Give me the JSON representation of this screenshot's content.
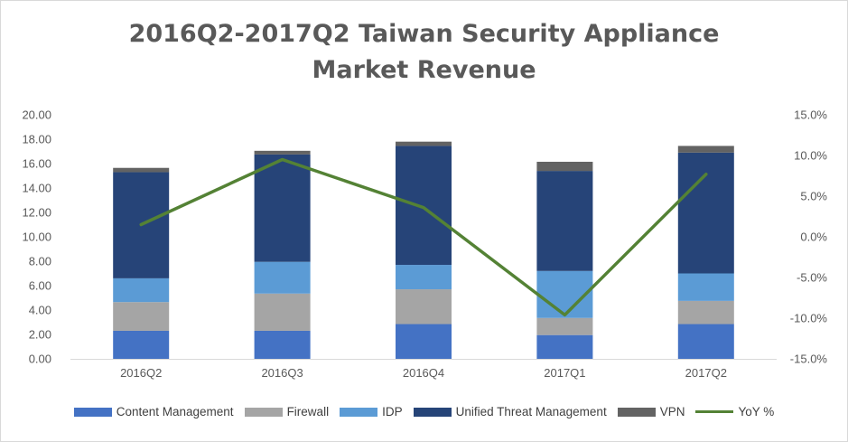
{
  "chart_data": {
    "type": "bar",
    "stacked": true,
    "title_line1": "2016Q2-2017Q2  Taiwan Security Appliance",
    "title_line2": "Market Revenue",
    "categories": [
      "2016Q2",
      "2016Q3",
      "2016Q4",
      "2017Q1",
      "2017Q2"
    ],
    "series": [
      {
        "name": "Content Management",
        "color": "#4472c4",
        "values": [
          2.3,
          2.3,
          2.85,
          1.95,
          2.85
        ]
      },
      {
        "name": "Firewall",
        "color": "#a5a5a5",
        "values": [
          2.35,
          3.05,
          2.85,
          1.4,
          1.9
        ]
      },
      {
        "name": "IDP",
        "color": "#5b9bd5",
        "values": [
          1.95,
          2.6,
          2.0,
          3.85,
          2.25
        ]
      },
      {
        "name": "Unified Threat Management",
        "color": "#264478",
        "values": [
          8.7,
          8.8,
          9.75,
          8.2,
          9.9
        ]
      },
      {
        "name": "VPN",
        "color": "#636363",
        "values": [
          0.35,
          0.3,
          0.35,
          0.75,
          0.55
        ]
      }
    ],
    "line_series": {
      "name": "YoY %",
      "color": "#548235",
      "values": [
        1.5,
        9.5,
        3.6,
        -9.6,
        7.7
      ],
      "unit": "%"
    },
    "y_left": {
      "min": 0,
      "max": 20,
      "step": 2,
      "ticks": [
        "0.00",
        "2.00",
        "4.00",
        "6.00",
        "8.00",
        "10.00",
        "12.00",
        "14.00",
        "16.00",
        "18.00",
        "20.00"
      ]
    },
    "y_right": {
      "min": -15,
      "max": 15,
      "step": 5,
      "ticks": [
        "-15.0%",
        "-10.0%",
        "-5.0%",
        "0.0%",
        "5.0%",
        "10.0%",
        "15.0%"
      ]
    },
    "grid": false,
    "legend_position": "bottom"
  }
}
